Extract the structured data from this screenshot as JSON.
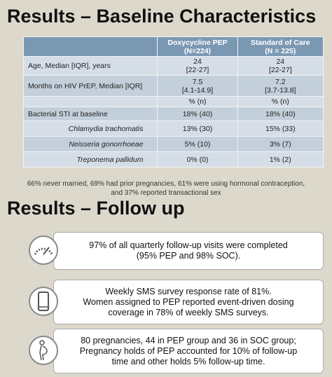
{
  "baseline": {
    "title": "Results – Baseline Characteristics",
    "table": {
      "header": [
        [],
        [
          "Doxycycline PEP",
          "(N=224)"
        ],
        [
          "Standard of Care",
          "(N = 225)"
        ]
      ],
      "rows": [
        [
          [
            "Age, Median [IQR], years"
          ],
          [
            "24",
            "[22-27]"
          ],
          [
            "24",
            "[22-27]"
          ]
        ],
        [
          [
            "Months on HIV PrEP, Median [IQR]"
          ],
          [
            "7.5",
            "[4.1-14.9]"
          ],
          [
            "7.2",
            "[3.7-13.8]"
          ]
        ],
        [
          [],
          [
            "% (n)"
          ],
          [
            "% (n)"
          ]
        ],
        [
          [
            "Bacterial STI at baseline"
          ],
          [
            "18% (40)"
          ],
          [
            "18% (40)"
          ]
        ],
        [
          [
            "Chlamydia trachomatis"
          ],
          [
            "13% (30)"
          ],
          [
            "15% (33)"
          ]
        ],
        [
          [
            "Neisseria gonorrhoeae"
          ],
          [
            "5% (10)"
          ],
          [
            "3% (7)"
          ]
        ],
        [
          [
            "Treponema pallidum"
          ],
          [
            "0% (0)"
          ],
          [
            "1% (2)"
          ]
        ]
      ]
    },
    "note": [
      "66% never married, 69% had prior pregnancies, 61% were using hormonal contraception,",
      "and 37% reported transactional sex"
    ]
  },
  "follow_up": {
    "title": "Results – Follow up",
    "items": [
      {
        "lines": [
          "97% of all quarterly follow-up visits were completed",
          "(95% PEP and 98% SOC)."
        ]
      },
      {
        "lines": [
          "Weekly SMS survey response rate of 81%.",
          "Women assigned to PEP reported event-driven dosing",
          "coverage in 78% of weekly SMS surveys."
        ]
      },
      {
        "lines": [
          "80 pregnancies, 44 in PEP group and 36 in SOC group;",
          "Pregnancy holds of PEP accounted for 10% of follow-up",
          "time and other holds 5% follow-up time."
        ]
      }
    ]
  }
}
